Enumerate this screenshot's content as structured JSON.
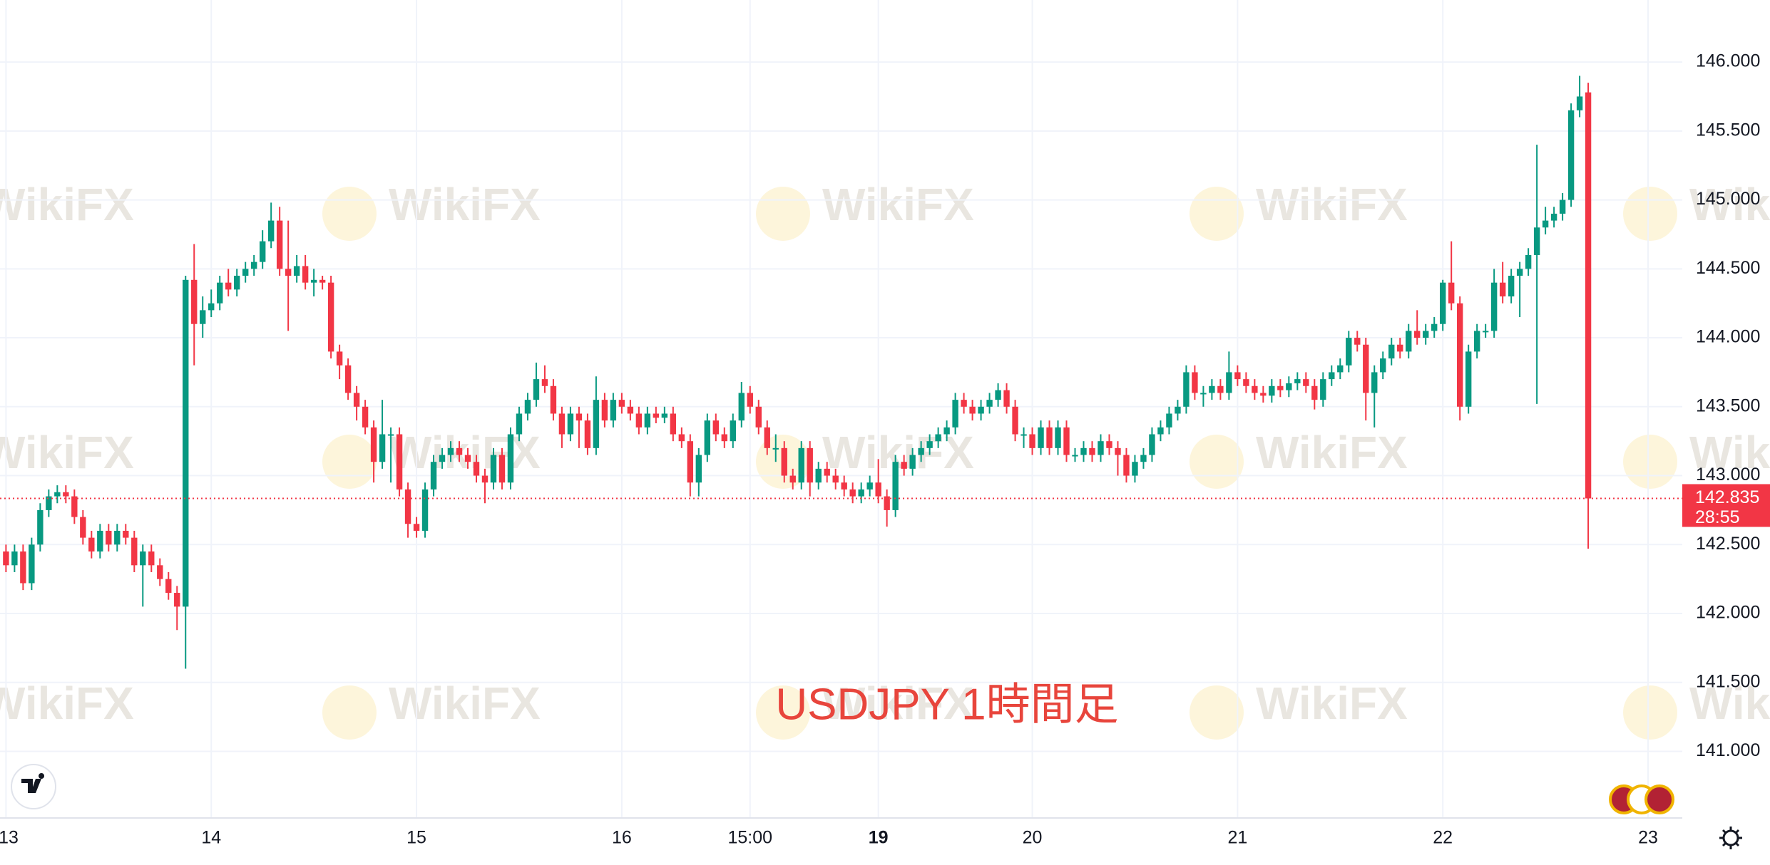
{
  "chart_data": {
    "type": "candlestick",
    "annotation": "USDJPY 1時間足",
    "watermark": "WikiFX",
    "up_color": "#089981",
    "down_color": "#f23645",
    "grid": true,
    "last_price": 142.835,
    "countdown": "28:55",
    "open": [
      142.45,
      142.35,
      142.45,
      142.22,
      142.5,
      142.75,
      142.85,
      142.88,
      142.85,
      142.7,
      142.55,
      142.45,
      142.6,
      142.5,
      142.6,
      142.55,
      142.35,
      142.45,
      142.35,
      142.25,
      142.15,
      142.05,
      144.42,
      144.1,
      144.2,
      144.25,
      144.4,
      144.35,
      144.45,
      144.5,
      144.55,
      144.7,
      144.85,
      144.5,
      144.45,
      144.52,
      144.4,
      144.42,
      144.4,
      143.9,
      143.8,
      143.6,
      143.5,
      143.35,
      143.1,
      143.3,
      143.3,
      142.9,
      142.65,
      142.6,
      142.9,
      143.1,
      143.15,
      143.2,
      143.15,
      143.1,
      143.0,
      142.95,
      143.15,
      142.95,
      143.3,
      143.45,
      143.55,
      143.7,
      143.65,
      143.45,
      143.3,
      143.45,
      143.4,
      143.2,
      143.55,
      143.4,
      143.55,
      143.5,
      143.45,
      143.35,
      143.45,
      143.42,
      143.45,
      143.3,
      143.25,
      142.95,
      143.15,
      143.4,
      143.3,
      143.25,
      143.4,
      143.6,
      143.5,
      143.35,
      143.2,
      143.2,
      143.0,
      142.95,
      143.2,
      142.95,
      143.05,
      143.0,
      142.95,
      142.9,
      142.85,
      142.9,
      142.95,
      142.85,
      142.75,
      143.1,
      143.05,
      143.15,
      143.2,
      143.25,
      143.3,
      143.35,
      143.55,
      143.5,
      143.45,
      143.5,
      143.55,
      143.62,
      143.5,
      143.3,
      143.3,
      143.2,
      143.35,
      143.2,
      143.35,
      143.15,
      143.15,
      143.2,
      143.15,
      143.25,
      143.2,
      143.15,
      143.0,
      143.1,
      143.15,
      143.3,
      143.35,
      143.45,
      143.5,
      143.75,
      143.6,
      143.6,
      143.65,
      143.6,
      143.75,
      143.7,
      143.65,
      143.6,
      143.58,
      143.65,
      143.62,
      143.67,
      143.7,
      143.65,
      143.55,
      143.7,
      143.75,
      143.8,
      144.0,
      143.95,
      143.6,
      143.75,
      143.85,
      143.95,
      143.9,
      144.05,
      144.0,
      144.05,
      144.1,
      144.4,
      144.25,
      143.5,
      143.9,
      144.05,
      144.05,
      144.4,
      144.3,
      144.45,
      144.5,
      144.6,
      144.8,
      144.85,
      144.9,
      145.0,
      145.65,
      145.78
    ],
    "high": [
      142.5,
      142.5,
      142.5,
      142.55,
      142.8,
      142.9,
      142.93,
      142.93,
      142.9,
      142.75,
      142.6,
      142.65,
      142.65,
      142.65,
      142.65,
      142.6,
      142.5,
      142.5,
      142.4,
      142.3,
      142.2,
      144.45,
      144.68,
      144.3,
      144.35,
      144.45,
      144.5,
      144.5,
      144.55,
      144.6,
      144.78,
      144.98,
      144.95,
      144.85,
      144.6,
      144.6,
      144.5,
      144.45,
      144.45,
      143.95,
      143.85,
      143.65,
      143.55,
      143.4,
      143.55,
      143.35,
      143.35,
      142.95,
      142.7,
      142.95,
      143.15,
      143.2,
      143.25,
      143.25,
      143.2,
      143.15,
      143.05,
      143.2,
      143.2,
      143.35,
      143.5,
      143.6,
      143.82,
      143.8,
      143.7,
      143.5,
      143.5,
      143.5,
      143.45,
      143.72,
      143.6,
      143.6,
      143.6,
      143.55,
      143.5,
      143.5,
      143.5,
      143.5,
      143.5,
      143.35,
      143.3,
      143.2,
      143.45,
      143.45,
      143.35,
      143.45,
      143.68,
      143.65,
      143.55,
      143.4,
      143.3,
      143.25,
      143.05,
      143.25,
      143.25,
      143.1,
      143.1,
      143.05,
      143.0,
      142.95,
      142.95,
      143.0,
      143.12,
      142.9,
      143.15,
      143.15,
      143.2,
      143.25,
      143.3,
      143.35,
      143.4,
      143.6,
      143.6,
      143.55,
      143.55,
      143.6,
      143.67,
      143.67,
      143.55,
      143.35,
      143.35,
      143.4,
      143.4,
      143.4,
      143.4,
      143.2,
      143.25,
      143.25,
      143.3,
      143.3,
      143.25,
      143.2,
      143.15,
      143.2,
      143.35,
      143.4,
      143.5,
      143.55,
      143.8,
      143.8,
      143.65,
      143.7,
      143.7,
      143.9,
      143.8,
      143.75,
      143.7,
      143.65,
      143.7,
      143.7,
      143.72,
      143.75,
      143.75,
      143.7,
      143.75,
      143.8,
      143.85,
      144.05,
      144.05,
      144.0,
      143.8,
      143.9,
      144.0,
      144.0,
      144.1,
      144.2,
      144.1,
      144.15,
      144.42,
      144.7,
      144.3,
      143.95,
      144.1,
      144.1,
      144.5,
      144.55,
      144.5,
      144.55,
      144.65,
      145.4,
      144.95,
      144.95,
      145.05,
      145.7,
      145.9,
      145.85
    ],
    "low": [
      142.3,
      142.3,
      142.17,
      142.17,
      142.45,
      142.7,
      142.8,
      142.8,
      142.65,
      142.5,
      142.4,
      142.4,
      142.45,
      142.45,
      142.5,
      142.3,
      142.05,
      142.3,
      142.2,
      142.1,
      141.88,
      141.6,
      143.8,
      144.0,
      144.15,
      144.2,
      144.3,
      144.3,
      144.4,
      144.45,
      144.5,
      144.65,
      144.45,
      144.05,
      144.4,
      144.35,
      144.3,
      144.35,
      143.85,
      143.7,
      143.55,
      143.4,
      143.3,
      142.95,
      143.05,
      142.95,
      142.85,
      142.55,
      142.55,
      142.55,
      142.85,
      143.05,
      143.1,
      143.1,
      143.05,
      142.95,
      142.8,
      142.9,
      142.9,
      142.9,
      143.25,
      143.4,
      143.5,
      143.6,
      143.4,
      143.2,
      143.25,
      143.2,
      143.15,
      143.15,
      143.35,
      143.35,
      143.45,
      143.4,
      143.3,
      143.3,
      143.38,
      143.38,
      143.25,
      143.2,
      142.85,
      142.85,
      143.1,
      143.25,
      143.2,
      143.2,
      143.35,
      143.45,
      143.3,
      143.15,
      143.1,
      142.95,
      142.9,
      142.9,
      142.85,
      142.9,
      142.95,
      142.9,
      142.85,
      142.8,
      142.8,
      142.85,
      142.8,
      142.63,
      142.7,
      143.0,
      143.0,
      143.1,
      143.15,
      143.2,
      143.25,
      143.3,
      143.45,
      143.4,
      143.4,
      143.45,
      143.5,
      143.45,
      143.25,
      143.2,
      143.15,
      143.15,
      143.15,
      143.15,
      143.1,
      143.1,
      143.1,
      143.1,
      143.1,
      143.15,
      143.0,
      142.95,
      142.95,
      143.05,
      143.1,
      143.25,
      143.3,
      143.4,
      143.45,
      143.55,
      143.5,
      143.55,
      143.55,
      143.55,
      143.65,
      143.6,
      143.55,
      143.53,
      143.53,
      143.57,
      143.57,
      143.62,
      143.6,
      143.48,
      143.5,
      143.65,
      143.7,
      143.75,
      143.9,
      143.4,
      143.35,
      143.7,
      143.8,
      143.85,
      143.85,
      143.95,
      143.95,
      144.0,
      144.05,
      144.2,
      143.4,
      143.45,
      143.85,
      144.0,
      144.0,
      144.25,
      144.25,
      144.15,
      144.45,
      143.52,
      144.75,
      144.8,
      144.85,
      144.95,
      145.6,
      142.47
    ],
    "close": [
      142.35,
      142.45,
      142.22,
      142.5,
      142.75,
      142.85,
      142.88,
      142.85,
      142.7,
      142.55,
      142.45,
      142.6,
      142.5,
      142.6,
      142.55,
      142.35,
      142.45,
      142.35,
      142.25,
      142.15,
      142.05,
      144.42,
      144.1,
      144.2,
      144.25,
      144.4,
      144.35,
      144.45,
      144.5,
      144.55,
      144.7,
      144.85,
      144.5,
      144.45,
      144.52,
      144.4,
      144.42,
      144.4,
      143.9,
      143.8,
      143.6,
      143.5,
      143.35,
      143.1,
      143.3,
      143.3,
      142.9,
      142.65,
      142.6,
      142.9,
      143.1,
      143.15,
      143.2,
      143.15,
      143.1,
      143.0,
      142.95,
      143.15,
      142.95,
      143.3,
      143.45,
      143.55,
      143.7,
      143.65,
      143.45,
      143.3,
      143.45,
      143.4,
      143.2,
      143.55,
      143.4,
      143.55,
      143.5,
      143.45,
      143.35,
      143.45,
      143.42,
      143.45,
      143.3,
      143.25,
      142.95,
      143.15,
      143.4,
      143.3,
      143.25,
      143.4,
      143.6,
      143.5,
      143.35,
      143.2,
      143.2,
      143.0,
      142.95,
      143.2,
      142.95,
      143.05,
      143.0,
      142.95,
      142.9,
      142.85,
      142.9,
      142.95,
      142.85,
      142.75,
      143.1,
      143.05,
      143.15,
      143.2,
      143.25,
      143.3,
      143.35,
      143.55,
      143.5,
      143.45,
      143.5,
      143.55,
      143.62,
      143.5,
      143.3,
      143.3,
      143.2,
      143.35,
      143.2,
      143.35,
      143.15,
      143.15,
      143.2,
      143.15,
      143.25,
      143.2,
      143.15,
      143.0,
      143.1,
      143.15,
      143.3,
      143.35,
      143.45,
      143.5,
      143.75,
      143.6,
      143.6,
      143.65,
      143.6,
      143.75,
      143.7,
      143.65,
      143.6,
      143.58,
      143.65,
      143.62,
      143.67,
      143.7,
      143.65,
      143.55,
      143.7,
      143.75,
      143.8,
      144.0,
      143.95,
      143.6,
      143.75,
      143.85,
      143.95,
      143.9,
      144.05,
      144.0,
      144.05,
      144.1,
      144.4,
      144.25,
      143.5,
      143.9,
      144.05,
      144.05,
      144.4,
      144.3,
      144.45,
      144.5,
      144.6,
      144.8,
      144.85,
      144.9,
      145.0,
      145.65,
      145.75,
      142.835
    ],
    "xlim": [
      -0.7,
      196
    ],
    "xticks": [
      {
        "value": 0,
        "label": "13"
      },
      {
        "value": 24,
        "label": "14"
      },
      {
        "value": 48,
        "label": "15"
      },
      {
        "value": 72,
        "label": "16"
      },
      {
        "value": 87,
        "label": "15:00"
      },
      {
        "value": 102,
        "label": "19"
      },
      {
        "value": 120,
        "label": "20"
      },
      {
        "value": 144,
        "label": "21"
      },
      {
        "value": 168,
        "label": "22"
      },
      {
        "value": 192,
        "label": "23"
      }
    ],
    "ylim": [
      140.517,
      146.45
    ],
    "yticks": [
      {
        "value": 141,
        "label": "141.000"
      },
      {
        "value": 141.5,
        "label": "141.500"
      },
      {
        "value": 142,
        "label": "142.000"
      },
      {
        "value": 142.5,
        "label": "142.500"
      },
      {
        "value": 143,
        "label": "143.000"
      },
      {
        "value": 143.5,
        "label": "143.500"
      },
      {
        "value": 144,
        "label": "144.000"
      },
      {
        "value": 144.5,
        "label": "144.500"
      },
      {
        "value": 145,
        "label": "145.000"
      },
      {
        "value": 145.5,
        "label": "145.500"
      },
      {
        "value": 146,
        "label": "146.000"
      }
    ]
  }
}
